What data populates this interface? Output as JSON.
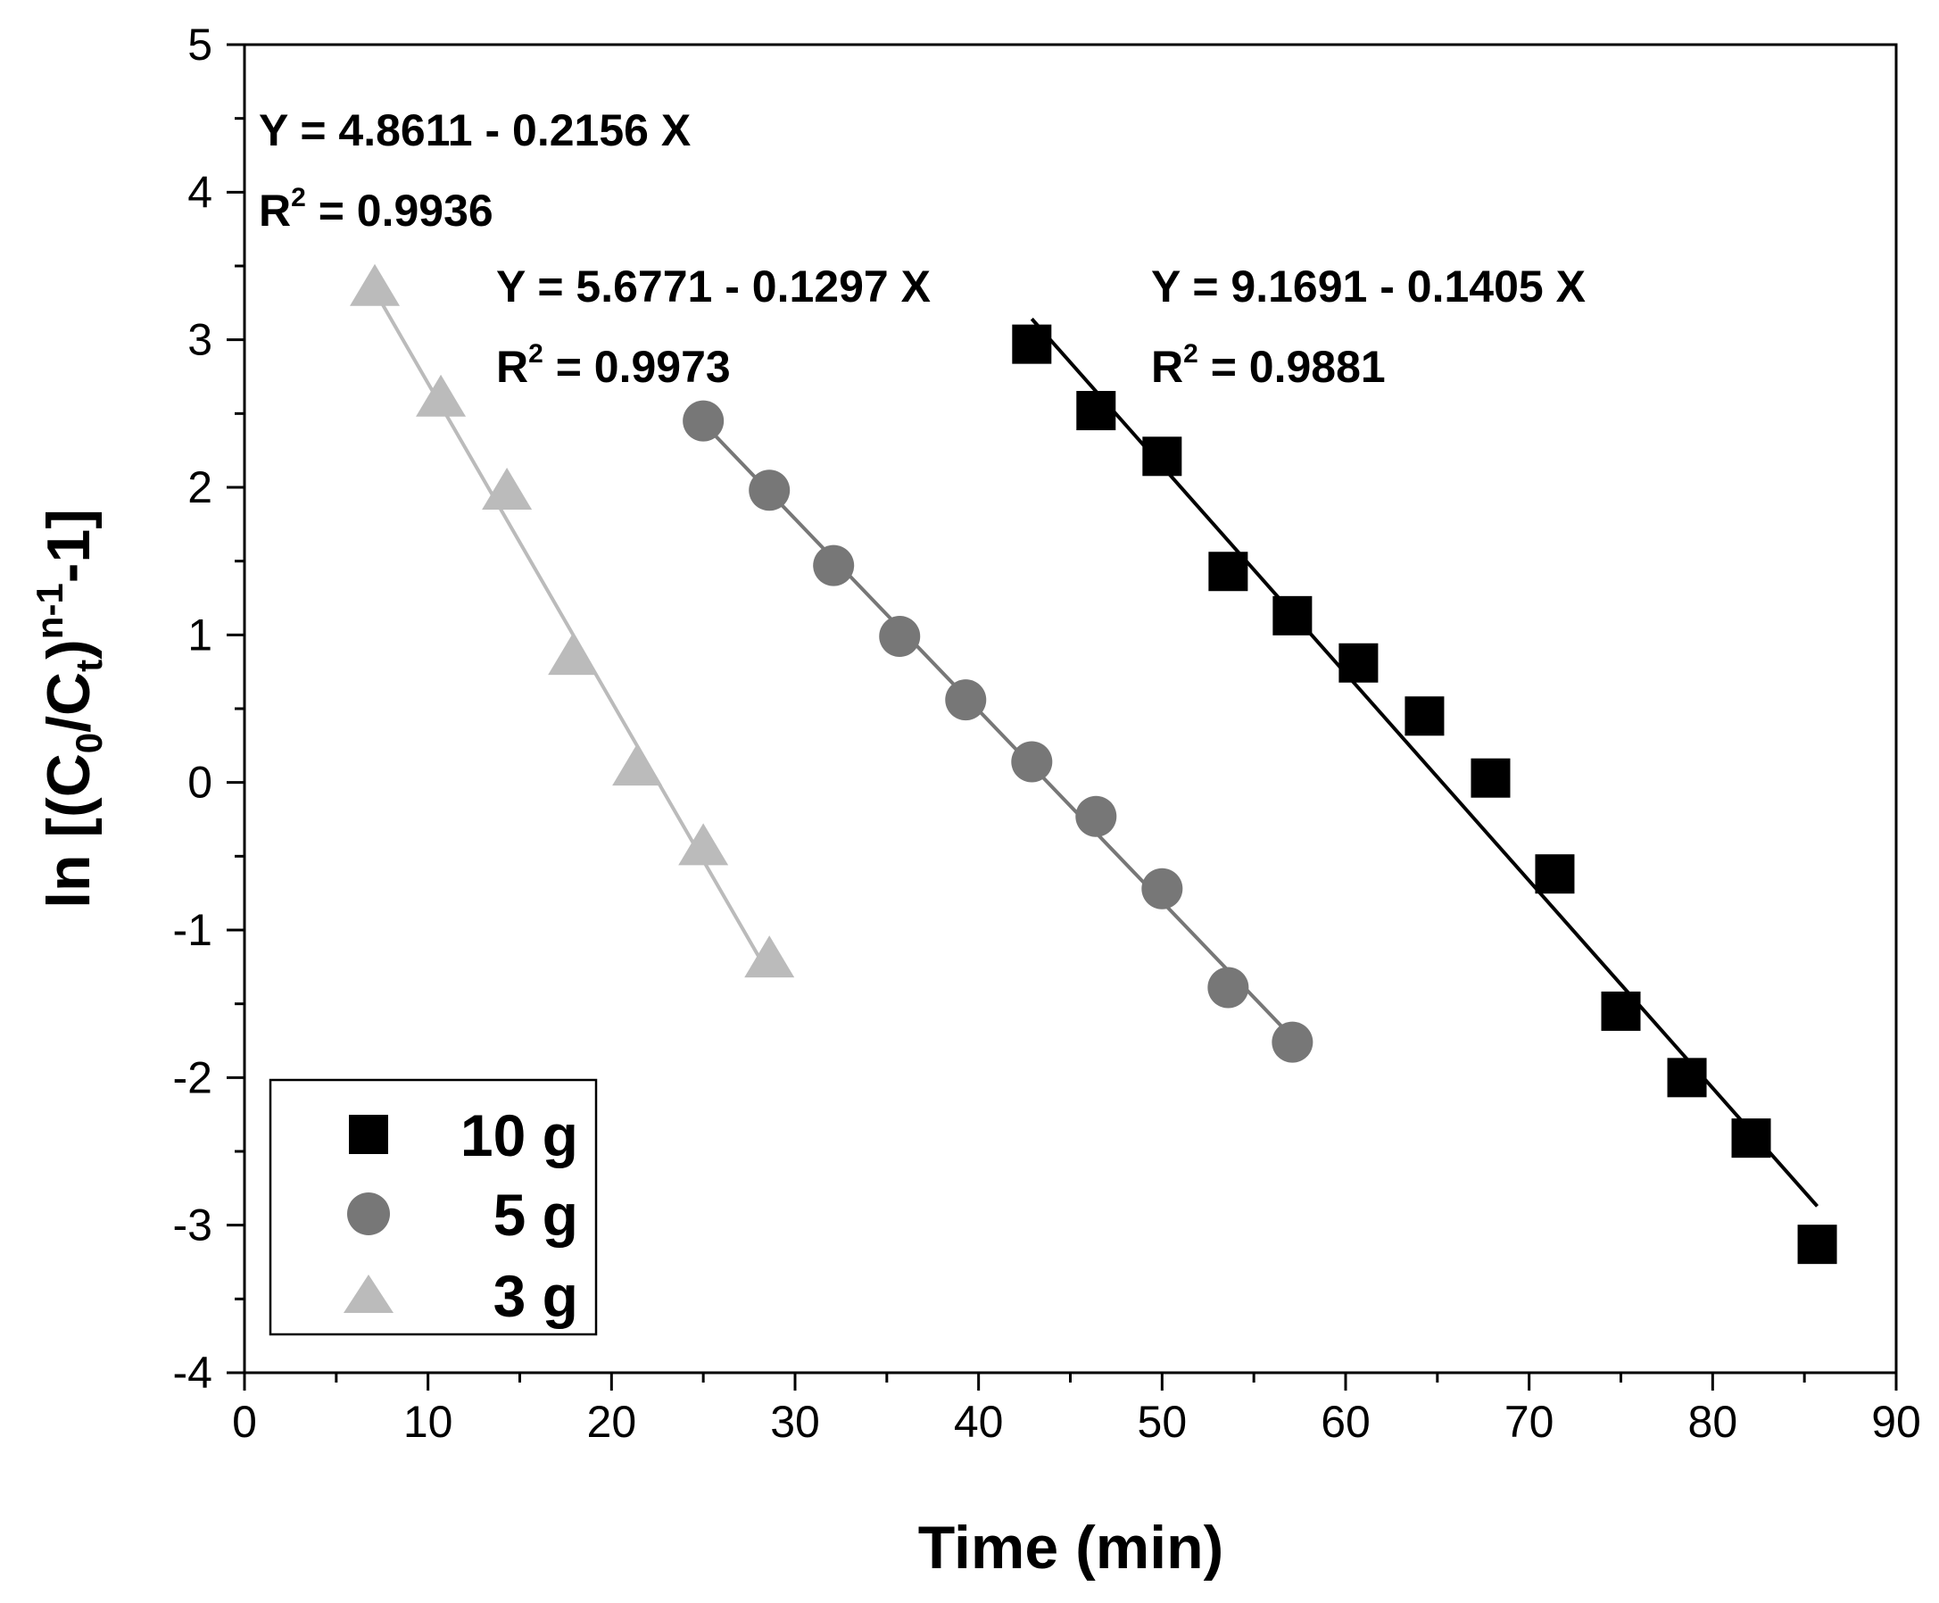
{
  "chart_data": {
    "type": "scatter",
    "title": "",
    "xlabel": "Time (min)",
    "ylabel_parts": {
      "prefix": "ln [(C",
      "sub0": "0",
      "mid": "/C",
      "subt": "t",
      "close": ")",
      "sup": "n-1",
      "suffix": "-1]"
    },
    "xlim": [
      0,
      90
    ],
    "ylim": [
      -4,
      5
    ],
    "x_ticks": [
      0,
      10,
      20,
      30,
      40,
      50,
      60,
      70,
      80,
      90
    ],
    "x_tick_labels": [
      "0",
      "10",
      "20",
      "30",
      "40",
      "50",
      "60",
      "70",
      "80",
      "90"
    ],
    "y_ticks": [
      -4,
      -3,
      -2,
      -1,
      0,
      1,
      2,
      3,
      4,
      5
    ],
    "y_tick_labels": [
      "-4",
      "-3",
      "-2",
      "-1",
      "0",
      "1",
      "2",
      "3",
      "4",
      "5"
    ],
    "grid": false,
    "legend_position": "bottom-left",
    "series": [
      {
        "name": "10 g",
        "marker": "square",
        "color": "#000000",
        "x": [
          42.9,
          46.4,
          50.0,
          53.6,
          57.1,
          60.7,
          64.3,
          67.9,
          71.4,
          75.0,
          78.6,
          82.1,
          85.7
        ],
        "y": [
          2.97,
          2.52,
          2.21,
          1.43,
          1.13,
          0.81,
          0.45,
          0.03,
          -0.62,
          -1.55,
          -2.0,
          -2.41,
          -3.13
        ],
        "fit": {
          "intercept": 9.1691,
          "slope": -0.1405,
          "x_range": [
            42.9,
            85.7
          ]
        },
        "equation": "Y = 9.1691 - 0.1405 X",
        "r2_prefix": "R",
        "r2_sup": "2",
        "r2_value": " = 0.9881"
      },
      {
        "name": "5 g",
        "marker": "circle",
        "color": "#777777",
        "x": [
          25.0,
          28.6,
          32.1,
          35.7,
          39.3,
          42.9,
          46.4,
          50.0,
          53.6,
          57.1
        ],
        "y": [
          2.45,
          1.98,
          1.47,
          0.99,
          0.56,
          0.14,
          -0.23,
          -0.72,
          -1.39,
          -1.76
        ],
        "fit": {
          "intercept": 5.6771,
          "slope": -0.1297,
          "x_range": [
            25.0,
            57.1
          ]
        },
        "equation": "Y = 5.6771 - 0.1297 X",
        "r2_prefix": "R",
        "r2_sup": "2",
        "r2_value": " = 0.9973"
      },
      {
        "name": "3 g",
        "marker": "triangle",
        "color": "#bbbbbb",
        "x": [
          7.1,
          10.7,
          14.3,
          17.9,
          21.4,
          25.0,
          28.6
        ],
        "y": [
          3.35,
          2.6,
          1.97,
          0.85,
          0.1,
          -0.44,
          -1.2
        ],
        "fit": {
          "intercept": 4.8611,
          "slope": -0.2156,
          "x_range": [
            7.1,
            28.6
          ]
        },
        "equation": "Y = 4.8611 - 0.2156 X",
        "r2_prefix": "R",
        "r2_sup": "2",
        "r2_value": " = 0.9936"
      }
    ]
  }
}
